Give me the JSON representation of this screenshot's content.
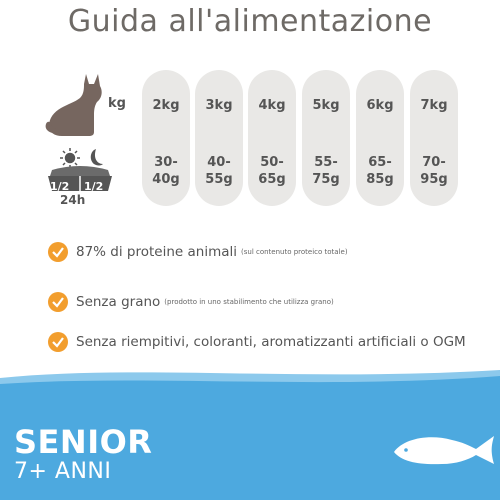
{
  "title": "Guida all'alimentazione",
  "feeding": {
    "kg_label": "kg",
    "bowl_left": "1/2",
    "bowl_right": "1/2",
    "period": "24h",
    "columns": [
      {
        "weight": "2kg",
        "amount": "30-\n40g"
      },
      {
        "weight": "3kg",
        "amount": "40-\n55g"
      },
      {
        "weight": "4kg",
        "amount": "50-\n65g"
      },
      {
        "weight": "5kg",
        "amount": "55-\n75g"
      },
      {
        "weight": "6kg",
        "amount": "65-\n85g"
      },
      {
        "weight": "7kg",
        "amount": "70-\n95g"
      }
    ]
  },
  "features": [
    {
      "main": "87% di proteine animali",
      "note": "(sul contenuto proteico totale)"
    },
    {
      "main": "Senza grano",
      "note": "(prodotto in uno stabilimento che utilizza grano)"
    },
    {
      "main": "Senza riempitivi, coloranti, aromatizzanti artificiali o OGM",
      "note": ""
    }
  ],
  "banner": {
    "line1": "SENIOR",
    "line2": "7+ ANNI"
  },
  "colors": {
    "title": "#6e6a66",
    "cat": "#76665f",
    "pill": "#e9e8e6",
    "check": "#f29e2e",
    "wave": "#4da9df",
    "wave_light": "#8cc9ec"
  },
  "icons": [
    "cat-icon",
    "sun-icon",
    "moon-icon",
    "bowl-icon",
    "check-icon",
    "fish-icon"
  ]
}
